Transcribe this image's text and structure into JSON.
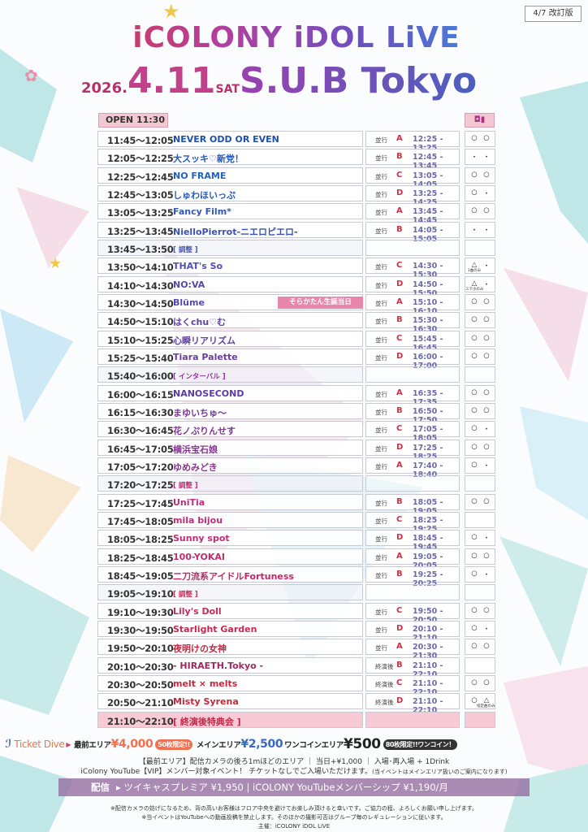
{
  "revision": "4/7 改訂版",
  "header": {
    "title": "iCOLONY iDOL LiVE",
    "year": "2026.",
    "date": "4.11",
    "weekday": "SAT",
    "venue": "S.U.B Tokyo"
  },
  "open_label": "OPEN 11:30",
  "camera_header_icons": [
    "camera-icon",
    "video-icon"
  ],
  "colors": {
    "accent_pink": "#f4c8d2",
    "price_orange": "#f07050",
    "price_blue": "#3a6ab8",
    "stream_band": "#966ea0"
  },
  "rows": [
    {
      "time": "11:45〜12:05",
      "name": "NEVER ODD OR EVEN",
      "color": "#1e4fb0",
      "queue": "並行",
      "lane": "A",
      "benefit": "12:25 - 13:25",
      "cam": [
        "○",
        "○"
      ]
    },
    {
      "time": "12:05〜12:25",
      "name": "大スッキ♡新党！",
      "color": "#2058c0",
      "queue": "並行",
      "lane": "B",
      "benefit": "12:45 - 13:45",
      "cam": [
        "・",
        "・"
      ]
    },
    {
      "time": "12:25〜12:45",
      "name": "NO FRAME",
      "color": "#2060c0",
      "queue": "並行",
      "lane": "C",
      "benefit": "13:05 - 14:05",
      "cam": [
        "○",
        "○"
      ]
    },
    {
      "time": "12:45〜13:05",
      "name": "しゅわほいっぷ",
      "color": "#2a5cbc",
      "queue": "並行",
      "lane": "D",
      "benefit": "13:25 - 14:25",
      "cam": [
        "○",
        "・"
      ]
    },
    {
      "time": "13:05〜13:25",
      "name": "Fancy Film*",
      "color": "#3558b8",
      "queue": "並行",
      "lane": "A",
      "benefit": "13:45 - 14:45",
      "cam": [
        "○",
        "○"
      ]
    },
    {
      "time": "13:25〜13:45",
      "name": "NielloPierrot-ニエロピエロ-",
      "color": "#3a52b4",
      "queue": "並行",
      "lane": "B",
      "benefit": "14:05 - 15:05",
      "cam": [
        "・",
        "・"
      ]
    },
    {
      "time": "13:45〜13:50",
      "name": "[ 調整 ]",
      "color": "#4a5ab0",
      "break": true
    },
    {
      "time": "13:50〜14:10",
      "name": "THAT's So",
      "color": "#5050b0",
      "queue": "並行",
      "lane": "C",
      "benefit": "14:30 - 15:30",
      "cam": [
        "△",
        "・"
      ],
      "cam_note": "1曲のみ"
    },
    {
      "time": "14:10〜14:30",
      "name": "NO:VA",
      "color": "#5448ac",
      "queue": "並行",
      "lane": "D",
      "benefit": "14:50 - 15:50",
      "cam": [
        "△",
        "・"
      ],
      "cam_note": "スマホのみ"
    },
    {
      "time": "14:30〜14:50",
      "name": "Blüme",
      "color": "#5a48a8",
      "badge": "そらかたん生誕当日",
      "queue": "並行",
      "lane": "A",
      "benefit": "15:10 - 16:10",
      "cam": [
        "○",
        "○"
      ]
    },
    {
      "time": "14:50〜15:10",
      "name": "はくchu♡む",
      "color": "#5e44a6",
      "queue": "並行",
      "lane": "B",
      "benefit": "15:30 - 16:30",
      "cam": [
        "○",
        "○"
      ]
    },
    {
      "time": "15:10〜15:25",
      "name": "心瞬リアリズム",
      "color": "#6040a4",
      "queue": "並行",
      "lane": "C",
      "benefit": "15:45 - 16:45",
      "cam": [
        "○",
        "○"
      ]
    },
    {
      "time": "15:25〜15:40",
      "name": "Tiara Palette",
      "color": "#6a3ca0",
      "queue": "並行",
      "lane": "D",
      "benefit": "16:00 - 17:00",
      "cam": [
        "○",
        "○"
      ]
    },
    {
      "time": "15:40〜16:00",
      "name": "[ インターバル ]",
      "color": "#8a3a98",
      "break": true
    },
    {
      "time": "16:00〜16:15",
      "name": "NANOSECOND",
      "color": "#5a3aa8",
      "queue": "並行",
      "lane": "A",
      "benefit": "16:35 - 17:35",
      "cam": [
        "○",
        "○"
      ]
    },
    {
      "time": "16:15〜16:30",
      "name": "まゆいちゅ～",
      "color": "#7a3a9c",
      "queue": "並行",
      "lane": "B",
      "benefit": "16:50 - 17:50",
      "cam": [
        "○",
        "○"
      ]
    },
    {
      "time": "16:30〜16:45",
      "name": "花ノぷりんせす",
      "color": "#823898",
      "queue": "並行",
      "lane": "C",
      "benefit": "17:05 - 18:05",
      "cam": [
        "○",
        "・"
      ]
    },
    {
      "time": "16:45〜17:05",
      "name": "横浜宝石娘",
      "color": "#883694",
      "queue": "並行",
      "lane": "D",
      "benefit": "17:25 - 18:25",
      "cam": [
        "○",
        "○"
      ]
    },
    {
      "time": "17:05〜17:20",
      "name": "ゆめみどき",
      "color": "#8e3490",
      "queue": "並行",
      "lane": "A",
      "benefit": "17:40 - 18:40",
      "cam": [
        "○",
        "・"
      ]
    },
    {
      "time": "17:20〜17:25",
      "name": "[ 調整 ]",
      "color": "#b83070",
      "break": true
    },
    {
      "time": "17:25〜17:45",
      "name": "UniTia",
      "color": "#b83080",
      "queue": "並行",
      "lane": "B",
      "benefit": "18:05 - 19:05",
      "cam": [
        "○",
        "○"
      ]
    },
    {
      "time": "17:45〜18:05",
      "name": "mila bijou",
      "color": "#bc2e7c",
      "queue": "並行",
      "lane": "C",
      "benefit": "18:25 - 19:25",
      "cam": [
        "",
        ""
      ]
    },
    {
      "time": "18:05〜18:25",
      "name": "Sunny spot",
      "color": "#c02c78",
      "queue": "並行",
      "lane": "D",
      "benefit": "18:45 - 19:45",
      "cam": [
        "○",
        "・"
      ]
    },
    {
      "time": "18:25〜18:45",
      "name": "100-YOKAI",
      "color": "#c42a70",
      "queue": "並行",
      "lane": "A",
      "benefit": "19:05 - 20:05",
      "cam": [
        "○",
        "○"
      ]
    },
    {
      "time": "18:45〜19:05",
      "name": "二刀流系アイドルFortuness",
      "color": "#c0286a",
      "queue": "並行",
      "lane": "B",
      "benefit": "19:25 - 20:25",
      "cam": [
        "○",
        "・"
      ]
    },
    {
      "time": "19:05〜19:10",
      "name": "[ 調整 ]",
      "color": "#c8305a",
      "break": true
    },
    {
      "time": "19:10〜19:30",
      "name": "Lily's Doll",
      "color": "#c42a5a",
      "queue": "並行",
      "lane": "C",
      "benefit": "19:50 - 20:50",
      "cam": [
        "○",
        "○"
      ]
    },
    {
      "time": "19:30〜19:50",
      "name": "Starlight Garden",
      "color": "#c42850",
      "queue": "並行",
      "lane": "D",
      "benefit": "20:10 - 21:10",
      "cam": [
        "○",
        "・"
      ]
    },
    {
      "time": "19:50〜20:10",
      "name": "夜明けの女神",
      "color": "#c82640",
      "queue": "並行",
      "lane": "A",
      "benefit": "20:30 - 21:30",
      "cam": [
        "○",
        "○"
      ]
    },
    {
      "time": "20:10〜20:30",
      "name": "- HIRAETH.Tokyo -",
      "color": "#a02a60",
      "queue": "終演後",
      "lane": "B",
      "benefit": "21:10 - 22:10",
      "cam": [
        "",
        ""
      ]
    },
    {
      "time": "20:30〜20:50",
      "name": "melt × melts",
      "color": "#c42840",
      "queue": "終演後",
      "lane": "C",
      "benefit": "21:10 - 22:10",
      "cam": [
        "○",
        "○"
      ]
    },
    {
      "time": "20:50〜21:10",
      "name": "Misty Syrena",
      "color": "#c42838",
      "queue": "終演後",
      "lane": "D",
      "benefit": "21:10 - 22:10",
      "cam": [
        "○",
        "△"
      ],
      "cam_note": "指定曲のみ"
    },
    {
      "time": "21:10〜22:10",
      "name": "[ 終演後特典会 ]",
      "color": "#c42848",
      "end": true
    }
  ],
  "tickets": {
    "brand": "Ticket Dive",
    "front_label": "最前エリア",
    "front_price": "¥4,000",
    "front_tag": "50枚限定!!",
    "main_label": "メインエリア",
    "main_price": "¥2,500",
    "coin_label": "ワンコインエリア",
    "coin_price": "¥500",
    "coin_tag": "80枚限定!!ワンコイン！",
    "info1": "【最前エリア】配信カメラの後ろ1mほどのエリア ｜ 当日+¥1,000 ｜ 入場･再入場 + 1Drink",
    "info2": "iColony YouTube【VIP】メンバー対象イベント！ チケットなしでご入場いただけます。",
    "info2_note": "(当イベントはメインエリア扱いのご案内になります)"
  },
  "stream": {
    "label": "配信",
    "text": "ツイキャスプレミア ¥1,950 | iCOLONY YouTubeメンバーシップ ¥1,190/月"
  },
  "notes": [
    "※配信カメラの妨げになるため、背の高いお客様はフロア中央を避けてお楽しみ頂けると幸いです。ご協力の程、よろしくお願い申し上げます。",
    "※当イベントはYouTubeへの動画投稿を禁止します。そのほかの撮影可否はグループ毎のレギュレーションに従います。",
    "主催：iCOLONY iDOL LiVE"
  ]
}
